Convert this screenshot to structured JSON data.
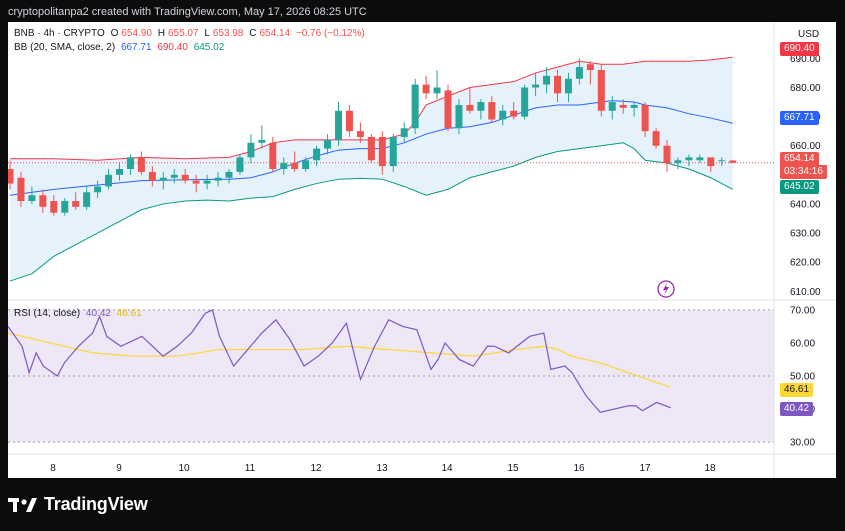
{
  "header": {
    "text": "cryptopolitanpa2 created with TradingView.com, May 17, 2026 08:25 UTC"
  },
  "currency": "USD",
  "legend": {
    "symbol": "BNB · 4h · CRYPTO",
    "o_label": "O",
    "o": "654.90",
    "h_label": "H",
    "h": "655.07",
    "l_label": "L",
    "l": "653.98",
    "c_label": "C",
    "c": "654.14",
    "change": "−0.76 (−0.12%)",
    "bb_label": "BB (20, SMA, close, 2)",
    "bb_mid": "667.71",
    "bb_up": "690.40",
    "bb_low": "645.02",
    "rsi_label": "RSI (14, close)",
    "rsi": "40.42",
    "rsi_ma": "46.61"
  },
  "tags": {
    "bb_up": "690.40",
    "bb_mid": "667.71",
    "price": "654.14",
    "countdown": "03:34:16",
    "bb_low": "645.02",
    "rsi_ma": "46.61",
    "rsi": "40.42"
  },
  "footer": {
    "brand": "TradingView"
  },
  "colors": {
    "up": "#26a69a",
    "down": "#ef5350",
    "bb_mid": "#2962ff",
    "bb_upper": "#f23645",
    "bb_lower": "#089981",
    "band_fill": "#e6f2fb",
    "rsi_line": "#7e57c2",
    "rsi_ma": "#fdd835",
    "rsi_bg": "#ede7f6"
  },
  "chart_data": [
    {
      "type": "candlestick",
      "title": "BNB · 4h · CRYPTO",
      "x_ticks": [
        "8",
        "9",
        "10",
        "11",
        "12",
        "13",
        "14",
        "15",
        "16",
        "17",
        "18"
      ],
      "y_ticks": [
        "610.00",
        "620.00",
        "630.00",
        "640.00",
        "650.00",
        "660.00",
        "670.00",
        "680.00",
        "690.00"
      ],
      "ylim": [
        607,
        697
      ],
      "candles": [
        {
          "o": 652,
          "h": 655,
          "l": 645,
          "c": 647
        },
        {
          "o": 649,
          "h": 651,
          "l": 639,
          "c": 641
        },
        {
          "o": 641,
          "h": 646,
          "l": 640,
          "c": 643
        },
        {
          "o": 643,
          "h": 645,
          "l": 637,
          "c": 639
        },
        {
          "o": 641,
          "h": 643,
          "l": 636,
          "c": 637
        },
        {
          "o": 637,
          "h": 642,
          "l": 636,
          "c": 641
        },
        {
          "o": 641,
          "h": 644,
          "l": 638,
          "c": 639
        },
        {
          "o": 639,
          "h": 646,
          "l": 638,
          "c": 644
        },
        {
          "o": 644,
          "h": 648,
          "l": 642,
          "c": 646
        },
        {
          "o": 646,
          "h": 652,
          "l": 645,
          "c": 650
        },
        {
          "o": 650,
          "h": 654,
          "l": 648,
          "c": 652
        },
        {
          "o": 652,
          "h": 657,
          "l": 650,
          "c": 656
        },
        {
          "o": 656,
          "h": 658,
          "l": 650,
          "c": 651
        },
        {
          "o": 651,
          "h": 653,
          "l": 646,
          "c": 648
        },
        {
          "o": 648,
          "h": 651,
          "l": 645,
          "c": 649
        },
        {
          "o": 649,
          "h": 652,
          "l": 647,
          "c": 650
        },
        {
          "o": 650,
          "h": 652,
          "l": 647,
          "c": 648
        },
        {
          "o": 648,
          "h": 650,
          "l": 644,
          "c": 647
        },
        {
          "o": 647,
          "h": 650,
          "l": 645,
          "c": 648
        },
        {
          "o": 648,
          "h": 651,
          "l": 646,
          "c": 649
        },
        {
          "o": 649,
          "h": 652,
          "l": 647,
          "c": 651
        },
        {
          "o": 651,
          "h": 657,
          "l": 650,
          "c": 656
        },
        {
          "o": 656,
          "h": 664,
          "l": 654,
          "c": 661
        },
        {
          "o": 661,
          "h": 667,
          "l": 659,
          "c": 662
        },
        {
          "o": 661,
          "h": 663,
          "l": 651,
          "c": 652
        },
        {
          "o": 652,
          "h": 656,
          "l": 650,
          "c": 654
        },
        {
          "o": 654,
          "h": 658,
          "l": 651,
          "c": 652
        },
        {
          "o": 652,
          "h": 656,
          "l": 651,
          "c": 655
        },
        {
          "o": 655,
          "h": 660,
          "l": 653,
          "c": 659
        },
        {
          "o": 659,
          "h": 664,
          "l": 657,
          "c": 662
        },
        {
          "o": 662,
          "h": 675,
          "l": 660,
          "c": 672
        },
        {
          "o": 672,
          "h": 674,
          "l": 663,
          "c": 665
        },
        {
          "o": 665,
          "h": 668,
          "l": 661,
          "c": 663
        },
        {
          "o": 663,
          "h": 664,
          "l": 654,
          "c": 655
        },
        {
          "o": 663,
          "h": 665,
          "l": 650,
          "c": 653
        },
        {
          "o": 653,
          "h": 664,
          "l": 651,
          "c": 663
        },
        {
          "o": 663,
          "h": 668,
          "l": 661,
          "c": 666
        },
        {
          "o": 666,
          "h": 683,
          "l": 664,
          "c": 681
        },
        {
          "o": 681,
          "h": 684,
          "l": 676,
          "c": 678
        },
        {
          "o": 678,
          "h": 686,
          "l": 676,
          "c": 680
        },
        {
          "o": 679,
          "h": 681,
          "l": 665,
          "c": 666
        },
        {
          "o": 666,
          "h": 676,
          "l": 664,
          "c": 674
        },
        {
          "o": 674,
          "h": 680,
          "l": 671,
          "c": 672
        },
        {
          "o": 672,
          "h": 676,
          "l": 669,
          "c": 675
        },
        {
          "o": 675,
          "h": 677,
          "l": 668,
          "c": 669
        },
        {
          "o": 669,
          "h": 674,
          "l": 667,
          "c": 672
        },
        {
          "o": 672,
          "h": 675,
          "l": 669,
          "c": 670
        },
        {
          "o": 670,
          "h": 681,
          "l": 669,
          "c": 680
        },
        {
          "o": 680,
          "h": 685,
          "l": 677,
          "c": 681
        },
        {
          "o": 681,
          "h": 687,
          "l": 678,
          "c": 684
        },
        {
          "o": 684,
          "h": 686,
          "l": 675,
          "c": 678
        },
        {
          "o": 678,
          "h": 685,
          "l": 675,
          "c": 683
        },
        {
          "o": 683,
          "h": 690,
          "l": 681,
          "c": 687
        },
        {
          "o": 688,
          "h": 689,
          "l": 681,
          "c": 686
        },
        {
          "o": 686,
          "h": 688,
          "l": 670,
          "c": 672
        },
        {
          "o": 672,
          "h": 677,
          "l": 669,
          "c": 675
        },
        {
          "o": 674,
          "h": 676,
          "l": 671,
          "c": 673
        },
        {
          "o": 673,
          "h": 675,
          "l": 670,
          "c": 674
        },
        {
          "o": 674,
          "h": 675,
          "l": 663,
          "c": 665
        },
        {
          "o": 665,
          "h": 666,
          "l": 659,
          "c": 660
        },
        {
          "o": 660,
          "h": 662,
          "l": 651,
          "c": 654
        },
        {
          "o": 654,
          "h": 656,
          "l": 652,
          "c": 655
        },
        {
          "o": 655,
          "h": 657,
          "l": 653,
          "c": 656
        },
        {
          "o": 655,
          "h": 657,
          "l": 654,
          "c": 656
        },
        {
          "o": 656,
          "h": 656,
          "l": 651,
          "c": 653
        },
        {
          "o": 655,
          "h": 656,
          "l": 653,
          "c": 655
        },
        {
          "o": 654.9,
          "h": 655.07,
          "l": 653.98,
          "c": 654.14
        }
      ],
      "series": [
        {
          "name": "BB upper",
          "values": [
            [
              0,
              655.5
            ],
            [
              4,
              655.5
            ],
            [
              8,
              655
            ],
            [
              12,
              656
            ],
            [
              16,
              655.5
            ],
            [
              20,
              656
            ],
            [
              22,
              658
            ],
            [
              24,
              661
            ],
            [
              26,
              662
            ],
            [
              28,
              662
            ],
            [
              30,
              662
            ],
            [
              32,
              662
            ],
            [
              34,
              662
            ],
            [
              36,
              664
            ],
            [
              37,
              668
            ],
            [
              38,
              674
            ],
            [
              42,
              680
            ],
            [
              46,
              682
            ],
            [
              48,
              685
            ],
            [
              50,
              687
            ],
            [
              52,
              689
            ],
            [
              54,
              688
            ],
            [
              56,
              688
            ],
            [
              58,
              689
            ],
            [
              60,
              689
            ],
            [
              62,
              689
            ],
            [
              64,
              689.5
            ],
            [
              66,
              690.4
            ]
          ]
        },
        {
          "name": "BB basis",
          "values": [
            [
              0,
              643
            ],
            [
              4,
              645
            ],
            [
              8,
              646.5
            ],
            [
              12,
              648
            ],
            [
              16,
              648.3
            ],
            [
              20,
              648.5
            ],
            [
              22,
              649
            ],
            [
              24,
              651
            ],
            [
              26,
              654
            ],
            [
              28,
              656.5
            ],
            [
              30,
              658.5
            ],
            [
              32,
              659
            ],
            [
              34,
              659
            ],
            [
              36,
              661
            ],
            [
              38,
              664
            ],
            [
              40,
              666
            ],
            [
              42,
              666.5
            ],
            [
              44,
              668
            ],
            [
              46,
              670.5
            ],
            [
              48,
              673
            ],
            [
              50,
              674
            ],
            [
              52,
              674
            ],
            [
              54,
              675
            ],
            [
              55,
              675.5
            ],
            [
              57,
              675
            ],
            [
              58,
              674
            ],
            [
              60,
              673
            ],
            [
              62,
              671
            ],
            [
              64,
              669.5
            ],
            [
              66,
              667.71
            ]
          ]
        },
        {
          "name": "BB lower",
          "values": [
            [
              0,
              613.5
            ],
            [
              2,
              616
            ],
            [
              4,
              622
            ],
            [
              6,
              626
            ],
            [
              8,
              630
            ],
            [
              10,
              634
            ],
            [
              12,
              638
            ],
            [
              14,
              640
            ],
            [
              16,
              641
            ],
            [
              18,
              641.3
            ],
            [
              20,
              641
            ],
            [
              22,
              642
            ],
            [
              24,
              642.5
            ],
            [
              26,
              645
            ],
            [
              28,
              647
            ],
            [
              30,
              648.5
            ],
            [
              32,
              648.8
            ],
            [
              34,
              648.5
            ],
            [
              36,
              646
            ],
            [
              38,
              643
            ],
            [
              40,
              645
            ],
            [
              42,
              649
            ],
            [
              44,
              651
            ],
            [
              46,
              653
            ],
            [
              48,
              656
            ],
            [
              50,
              658
            ],
            [
              52,
              659
            ],
            [
              54,
              660
            ],
            [
              56,
              661
            ],
            [
              57,
              659
            ],
            [
              58,
              655
            ],
            [
              60,
              654
            ],
            [
              62,
              652
            ],
            [
              64,
              649
            ],
            [
              66,
              645.02
            ]
          ]
        }
      ]
    },
    {
      "type": "line",
      "title": "RSI (14, close)",
      "y_ticks": [
        "30.00",
        "40.00",
        "50.00",
        "60.00",
        "70.00"
      ],
      "ylim": [
        27,
        73
      ],
      "bands": [
        30,
        50,
        70
      ],
      "series": [
        {
          "name": "RSI",
          "values": [
            [
              0,
              65
            ],
            [
              2,
              59
            ],
            [
              3,
              51
            ],
            [
              4,
              57
            ],
            [
              5,
              53
            ],
            [
              7,
              50
            ],
            [
              8,
              54
            ],
            [
              10,
              59
            ],
            [
              12,
              63
            ],
            [
              13,
              68
            ],
            [
              14,
              62
            ],
            [
              16,
              59
            ],
            [
              18,
              61
            ],
            [
              19,
              62
            ],
            [
              20,
              60
            ],
            [
              22,
              56
            ],
            [
              24,
              59
            ],
            [
              26,
              63
            ],
            [
              28,
              69
            ],
            [
              29,
              70
            ],
            [
              30,
              62
            ],
            [
              32,
              53
            ],
            [
              34,
              58
            ],
            [
              36,
              63
            ],
            [
              38,
              67
            ],
            [
              40,
              61
            ],
            [
              42,
              53
            ],
            [
              44,
              56
            ],
            [
              46,
              60
            ],
            [
              48,
              66
            ],
            [
              50,
              49
            ],
            [
              52,
              59
            ],
            [
              54,
              67
            ],
            [
              56,
              65
            ],
            [
              58,
              64
            ],
            [
              60,
              52
            ],
            [
              61,
              55
            ],
            [
              62,
              60
            ],
            [
              64,
              55
            ],
            [
              66,
              53
            ],
            [
              68,
              59
            ],
            [
              69,
              59
            ],
            [
              71,
              57
            ],
            [
              74,
              62
            ],
            [
              76,
              63
            ],
            [
              77,
              52
            ],
            [
              79,
              53
            ],
            [
              80,
              51
            ],
            [
              82,
              44
            ],
            [
              84,
              39
            ],
            [
              86,
              40
            ],
            [
              88,
              41
            ],
            [
              89,
              41
            ],
            [
              90,
              39.5
            ],
            [
              92,
              42
            ],
            [
              94,
              40.42
            ]
          ]
        },
        {
          "name": "RSI-based MA",
          "values": [
            [
              0,
              63
            ],
            [
              6,
              60
            ],
            [
              12,
              57
            ],
            [
              18,
              56
            ],
            [
              24,
              56
            ],
            [
              30,
              58
            ],
            [
              36,
              58
            ],
            [
              42,
              58
            ],
            [
              48,
              59
            ],
            [
              54,
              58
            ],
            [
              60,
              57
            ],
            [
              66,
              56
            ],
            [
              72,
              58
            ],
            [
              76,
              59
            ],
            [
              78,
              58
            ],
            [
              80,
              56
            ],
            [
              84,
              54
            ],
            [
              88,
              51
            ],
            [
              92,
              48
            ],
            [
              94,
              46.61
            ]
          ]
        }
      ]
    }
  ]
}
